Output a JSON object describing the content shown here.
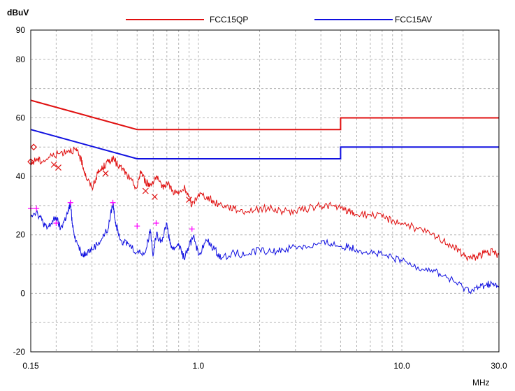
{
  "chart_data": {
    "type": "line",
    "ylabel": "dBuV",
    "xlabel": "MHz",
    "x_scale": "log",
    "xlim": [
      0.15,
      30.0
    ],
    "ylim": [
      -20,
      90
    ],
    "y_ticks": [
      "90",
      "80",
      "60",
      "40",
      "20",
      "0",
      "-20"
    ],
    "y_tick_values": [
      90,
      80,
      60,
      40,
      20,
      0,
      -20
    ],
    "x_ticks": [
      "0.15",
      "1.0",
      "10.0",
      "30.0"
    ],
    "x_tick_values": [
      0.15,
      1.0,
      10.0,
      30.0
    ],
    "grid": true,
    "legend_position": "top",
    "series": [
      {
        "name": "FCC15QP",
        "color": "#e01010",
        "style": "limit",
        "x": [
          0.15,
          0.5,
          0.5,
          5.0,
          5.0,
          30.0
        ],
        "y": [
          66,
          56,
          56,
          56,
          60,
          60
        ]
      },
      {
        "name": "FCC15AV",
        "color": "#1010e0",
        "style": "limit",
        "x": [
          0.15,
          0.5,
          0.5,
          5.0,
          5.0,
          30.0
        ],
        "y": [
          56,
          46,
          46,
          46,
          50,
          50
        ]
      },
      {
        "color": "#e01010",
        "style": "trace",
        "x": [
          0.15,
          0.16,
          0.17,
          0.19,
          0.21,
          0.23,
          0.25,
          0.26,
          0.27,
          0.28,
          0.3,
          0.32,
          0.34,
          0.36,
          0.38,
          0.4,
          0.43,
          0.46,
          0.5,
          0.52,
          0.55,
          0.58,
          0.62,
          0.66,
          0.7,
          0.75,
          0.8,
          0.86,
          0.93,
          1.0,
          1.1,
          1.2,
          1.35,
          1.5,
          1.7,
          2.0,
          2.3,
          2.6,
          3.0,
          3.5,
          4.0,
          4.5,
          5.0,
          5.5,
          6.0,
          7.0,
          8.0,
          9.0,
          10.0,
          12.0,
          14.0,
          16.0,
          18.0,
          20.0,
          22.0,
          24.0,
          26.0,
          28.0,
          30.0
        ],
        "y": [
          44,
          46,
          45,
          47,
          48,
          49,
          49,
          47,
          44,
          40,
          36,
          41,
          43,
          45,
          46,
          44,
          42,
          39,
          36,
          42,
          38,
          37,
          40,
          36,
          38,
          35,
          34,
          36,
          30,
          34,
          33,
          31,
          30,
          29,
          28,
          29,
          29,
          28,
          28,
          29,
          30,
          30,
          29,
          28,
          27,
          27,
          26,
          25,
          24,
          22,
          20,
          18,
          16,
          13,
          12,
          13,
          14,
          14,
          13
        ]
      },
      {
        "color": "#1010e0",
        "style": "trace",
        "x": [
          0.15,
          0.16,
          0.17,
          0.18,
          0.19,
          0.2,
          0.21,
          0.22,
          0.23,
          0.235,
          0.24,
          0.25,
          0.27,
          0.28,
          0.3,
          0.33,
          0.36,
          0.38,
          0.39,
          0.4,
          0.42,
          0.45,
          0.5,
          0.55,
          0.58,
          0.6,
          0.62,
          0.66,
          0.7,
          0.72,
          0.75,
          0.8,
          0.85,
          0.9,
          0.95,
          1.0,
          1.1,
          1.2,
          1.3,
          1.5,
          1.7,
          2.0,
          2.3,
          2.6,
          3.0,
          3.5,
          4.0,
          4.5,
          5.0,
          5.5,
          6.0,
          7.0,
          8.0,
          9.0,
          10.0,
          12.0,
          14.0,
          16.0,
          18.0,
          20.0,
          22.0,
          24.0,
          26.0,
          28.0,
          30.0
        ],
        "y": [
          27,
          28,
          25,
          22,
          24,
          26,
          22,
          25,
          28,
          31,
          24,
          18,
          13,
          14,
          15,
          18,
          22,
          31,
          25,
          22,
          18,
          17,
          14,
          14,
          22,
          13,
          20,
          18,
          24,
          18,
          15,
          17,
          12,
          16,
          20,
          13,
          18,
          15,
          12,
          14,
          13,
          15,
          14,
          15,
          16,
          16,
          17,
          17,
          16,
          16,
          15,
          14,
          13,
          12,
          11,
          9,
          8,
          6,
          4,
          2,
          1,
          2,
          3,
          3,
          2
        ]
      }
    ],
    "markers": [
      {
        "kind": "diamond",
        "color": "#e01010",
        "points": [
          [
            0.15,
            45
          ],
          [
            0.155,
            50
          ]
        ]
      },
      {
        "kind": "x",
        "color": "#e01010",
        "points": [
          [
            0.195,
            44
          ],
          [
            0.205,
            43
          ],
          [
            0.35,
            41
          ],
          [
            0.55,
            35
          ],
          [
            0.61,
            33
          ],
          [
            0.9,
            32
          ]
        ]
      },
      {
        "kind": "plus",
        "color": "#ff00ff",
        "points": [
          [
            0.15,
            29
          ],
          [
            0.16,
            29
          ],
          [
            0.2,
            24
          ],
          [
            0.235,
            31
          ],
          [
            0.38,
            31
          ],
          [
            0.5,
            23
          ],
          [
            0.62,
            24
          ],
          [
            0.93,
            22
          ]
        ]
      }
    ]
  }
}
